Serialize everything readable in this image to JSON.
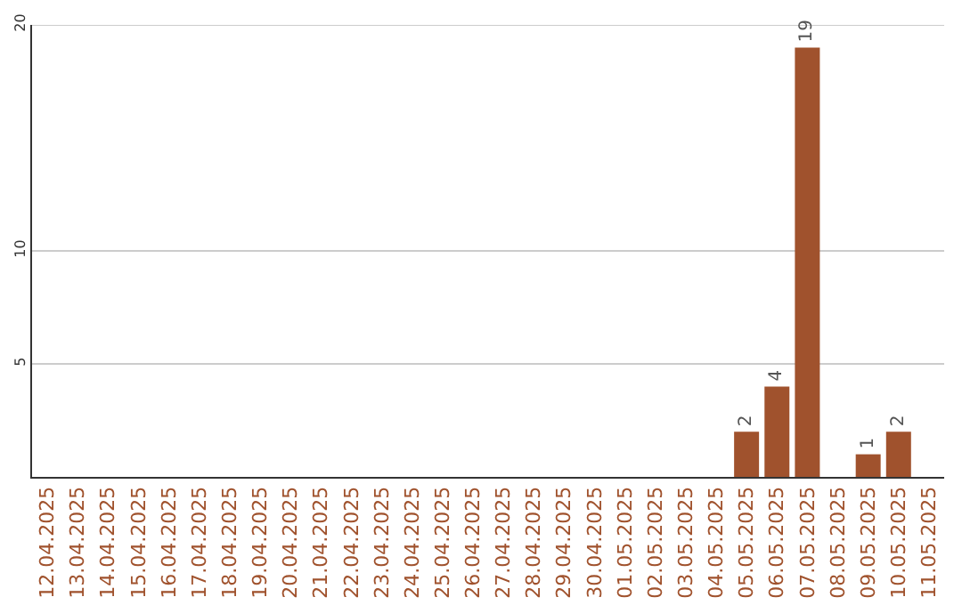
{
  "chart_data": {
    "type": "bar",
    "categories": [
      "12.04.2025",
      "13.04.2025",
      "14.04.2025",
      "15.04.2025",
      "16.04.2025",
      "17.04.2025",
      "18.04.2025",
      "19.04.2025",
      "20.04.2025",
      "21.04.2025",
      "22.04.2025",
      "23.04.2025",
      "24.04.2025",
      "25.04.2025",
      "26.04.2025",
      "27.04.2025",
      "28.04.2025",
      "29.04.2025",
      "30.04.2025",
      "01.05.2025",
      "02.05.2025",
      "03.05.2025",
      "04.05.2025",
      "05.05.2025",
      "06.05.2025",
      "07.05.2025",
      "08.05.2025",
      "09.05.2025",
      "10.05.2025",
      "11.05.2025"
    ],
    "values": [
      0,
      0,
      0,
      0,
      0,
      0,
      0,
      0,
      0,
      0,
      0,
      0,
      0,
      0,
      0,
      0,
      0,
      0,
      0,
      0,
      0,
      0,
      0,
      2,
      4,
      19,
      0,
      1,
      2,
      0
    ],
    "value_labels": [
      null,
      null,
      null,
      null,
      null,
      null,
      null,
      null,
      null,
      null,
      null,
      null,
      null,
      null,
      null,
      null,
      null,
      null,
      null,
      null,
      null,
      null,
      null,
      "2",
      "4",
      "19",
      null,
      "1",
      "2",
      null
    ],
    "color": "#a0522d",
    "ylim": [
      0,
      20
    ],
    "yticks": [
      5,
      10,
      20
    ],
    "grid": "y"
  }
}
